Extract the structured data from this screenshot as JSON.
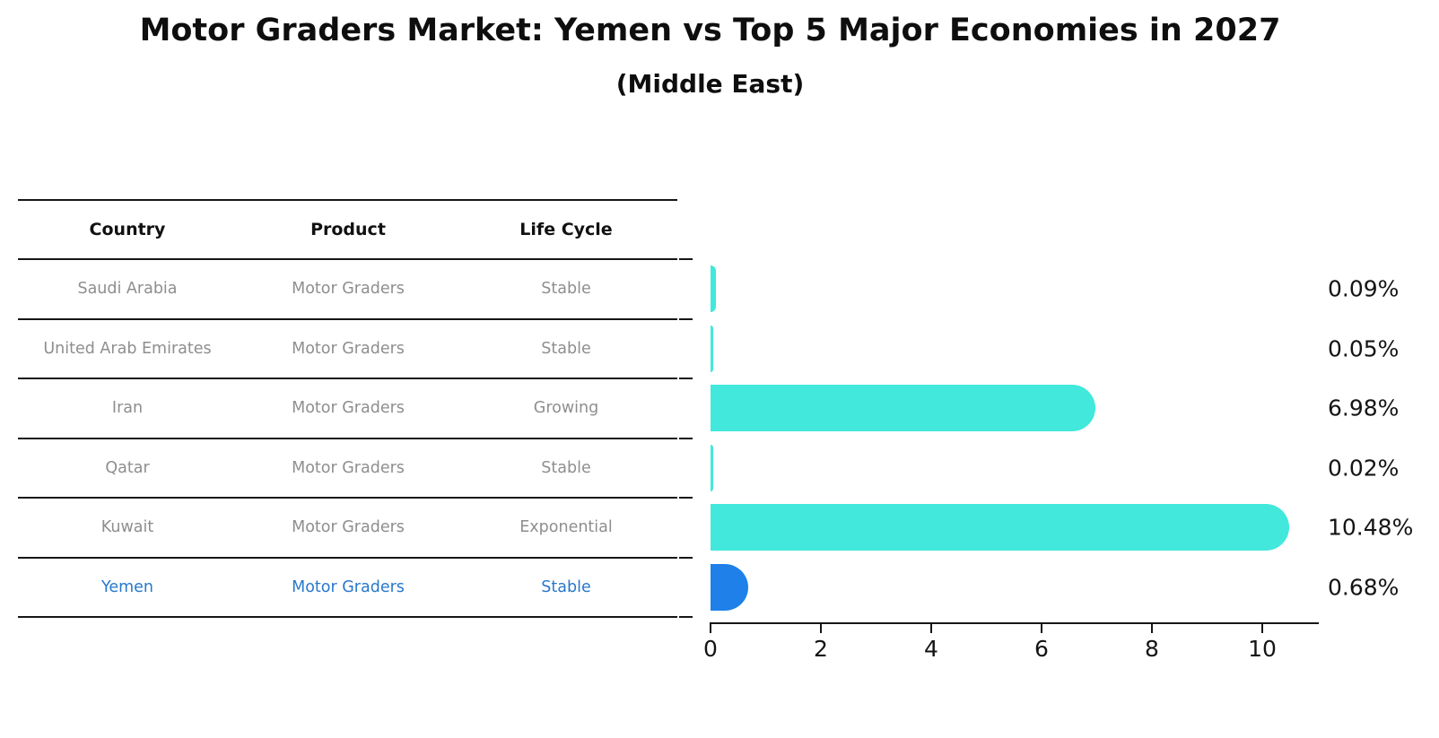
{
  "title": "Motor Graders Market: Yemen vs Top 5 Major Economies in 2027",
  "subtitle": "(Middle East)",
  "table": {
    "headers": [
      "Country",
      "Product",
      "Life Cycle"
    ],
    "rows": [
      {
        "country": "Saudi Arabia",
        "product": "Motor Graders",
        "life_cycle": "Stable",
        "highlight": false
      },
      {
        "country": "United Arab Emirates",
        "product": "Motor Graders",
        "life_cycle": "Stable",
        "highlight": false
      },
      {
        "country": "Iran",
        "product": "Motor Graders",
        "life_cycle": "Growing",
        "highlight": false
      },
      {
        "country": "Qatar",
        "product": "Motor Graders",
        "life_cycle": "Stable",
        "highlight": false
      },
      {
        "country": "Kuwait",
        "product": "Motor Graders",
        "life_cycle": "Exponential",
        "highlight": false
      },
      {
        "country": "Yemen",
        "product": "Motor Graders",
        "life_cycle": "Stable",
        "highlight": true
      }
    ]
  },
  "chart_data": {
    "type": "bar",
    "orientation": "horizontal",
    "title": "Motor Graders Market: Yemen vs Top 5 Major Economies in 2027",
    "subtitle": "(Middle East)",
    "categories": [
      "Saudi Arabia",
      "United Arab Emirates",
      "Iran",
      "Qatar",
      "Kuwait",
      "Yemen"
    ],
    "values": [
      0.09,
      0.05,
      6.98,
      0.02,
      10.48,
      0.68
    ],
    "value_labels": [
      "0.09%",
      "0.05%",
      "6.98%",
      "0.02%",
      "10.48%",
      "0.68%"
    ],
    "xlabel": "",
    "ylabel": "",
    "xlim": [
      0,
      11
    ],
    "xticks": [
      0,
      2,
      4,
      6,
      8,
      10
    ],
    "grid": false,
    "legend": false,
    "highlight_index": 5
  },
  "colors": {
    "bar_default": "#43E8DC",
    "bar_highlight": "#1E80E8",
    "highlight_text": "#2878CB",
    "table_text": "#8e8e8e",
    "axis_text": "#141414"
  }
}
